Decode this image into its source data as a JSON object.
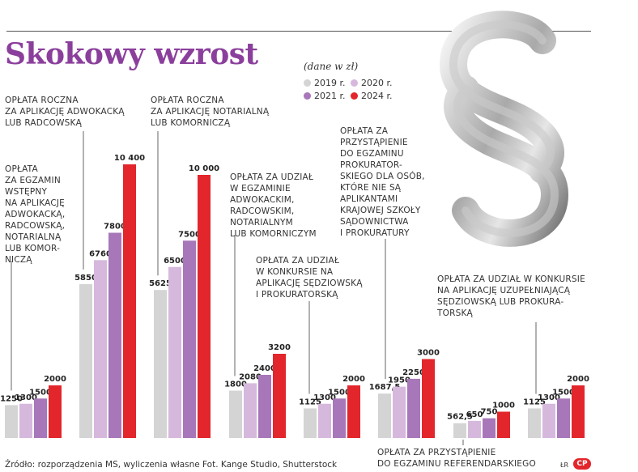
{
  "title": "Skokowy wzrost",
  "unit_note": "(dane w zł)",
  "source": "Źródło: rozporządzenia MS, wyliczenia własne",
  "credit": "Fot. Kange Studio, Shutterstock",
  "author": "ŁR",
  "logo": "CP",
  "colors": {
    "2019 r.": "#d4d4d4",
    "2020 r.": "#d6b8dd",
    "2021 r.": "#a777b9",
    "2024 r.": "#e2262b"
  },
  "chart_data": {
    "type": "bar",
    "series_names": [
      "2019 r.",
      "2020 r.",
      "2021 r.",
      "2024 r."
    ],
    "groups": [
      {
        "label": "OPŁATA\nZA EGZAMIN\nWSTĘPNY\nNA APLIKACJĘ\nADWOKACKĄ,\nRADCOWSKĄ,\nNOTARIALNĄ\nLUB KOMOR-\nNICZĄ",
        "values": [
          1250,
          1300,
          1500,
          2000
        ],
        "value_labels": [
          "1250",
          "1300",
          "1500",
          "2000"
        ]
      },
      {
        "label": "OPŁATA ROCZNA\nZA APLIKACJĘ ADWOKACKĄ\nLUB RADCOWSKĄ",
        "values": [
          5850,
          6760,
          7800,
          10400
        ],
        "value_labels": [
          "5850",
          "6760",
          "7800",
          "10 400"
        ]
      },
      {
        "label": "OPŁATA ROCZNA\nZA APLIKACJĘ NOTARIALNĄ\nLUB KOMORNICZĄ",
        "values": [
          5625,
          6500,
          7500,
          10000
        ],
        "value_labels": [
          "5625",
          "6500",
          "7500",
          "10 000"
        ]
      },
      {
        "label": "OPŁATA ZA UDZIAŁ\nW EGZAMINIE\nADWOKACKIM,\nRADCOWSKIM,\nNOTARIALNYM\nLUB KOMORNICZYM",
        "values": [
          1800,
          2080,
          2400,
          3200
        ],
        "value_labels": [
          "1800",
          "2080",
          "2400",
          "3200"
        ]
      },
      {
        "label": "OPŁATA ZA UDZIAŁ\nW KONKURSIE NA\nAPLIKACJĘ SĘDZIOWSKĄ\nI PROKURATORSKĄ",
        "values": [
          1125,
          1300,
          1500,
          2000
        ],
        "value_labels": [
          "1125",
          "1300",
          "1500",
          "2000"
        ]
      },
      {
        "label": "OPŁATA ZA\nPRZYSTĄPIENIE\nDO EGZAMINU\nPROKURATOR-\nSKIEGO DLA OSÓB,\nKTÓRE NIE SĄ\nAPLIKANTAMI\nKRAJOWEJ SZKOŁY\nSĄDOWNICTWA\nI PROKURATURY",
        "values": [
          1687.5,
          1950,
          2250,
          3000
        ],
        "value_labels": [
          "1687,5",
          "1950",
          "2250",
          "3000"
        ]
      },
      {
        "label": "OPŁATA ZA PRZYSTĄPIENIE\nDO EGZAMINU REFERENDARSKIEGO",
        "values": [
          562.5,
          650,
          750,
          1000
        ],
        "value_labels": [
          "562,5",
          "650",
          "750",
          "1000"
        ]
      },
      {
        "label": "OPŁATA ZA UDZIAŁ W KONKURSIE\nNA APLIKACJĘ UZUPEŁNIAJĄCĄ\nSĘDZIOWSKĄ LUB PROKURA-\nTORSKĄ",
        "values": [
          1125,
          1300,
          1500,
          2000
        ],
        "value_labels": [
          "1125",
          "1300",
          "1500",
          "2000"
        ]
      }
    ]
  }
}
